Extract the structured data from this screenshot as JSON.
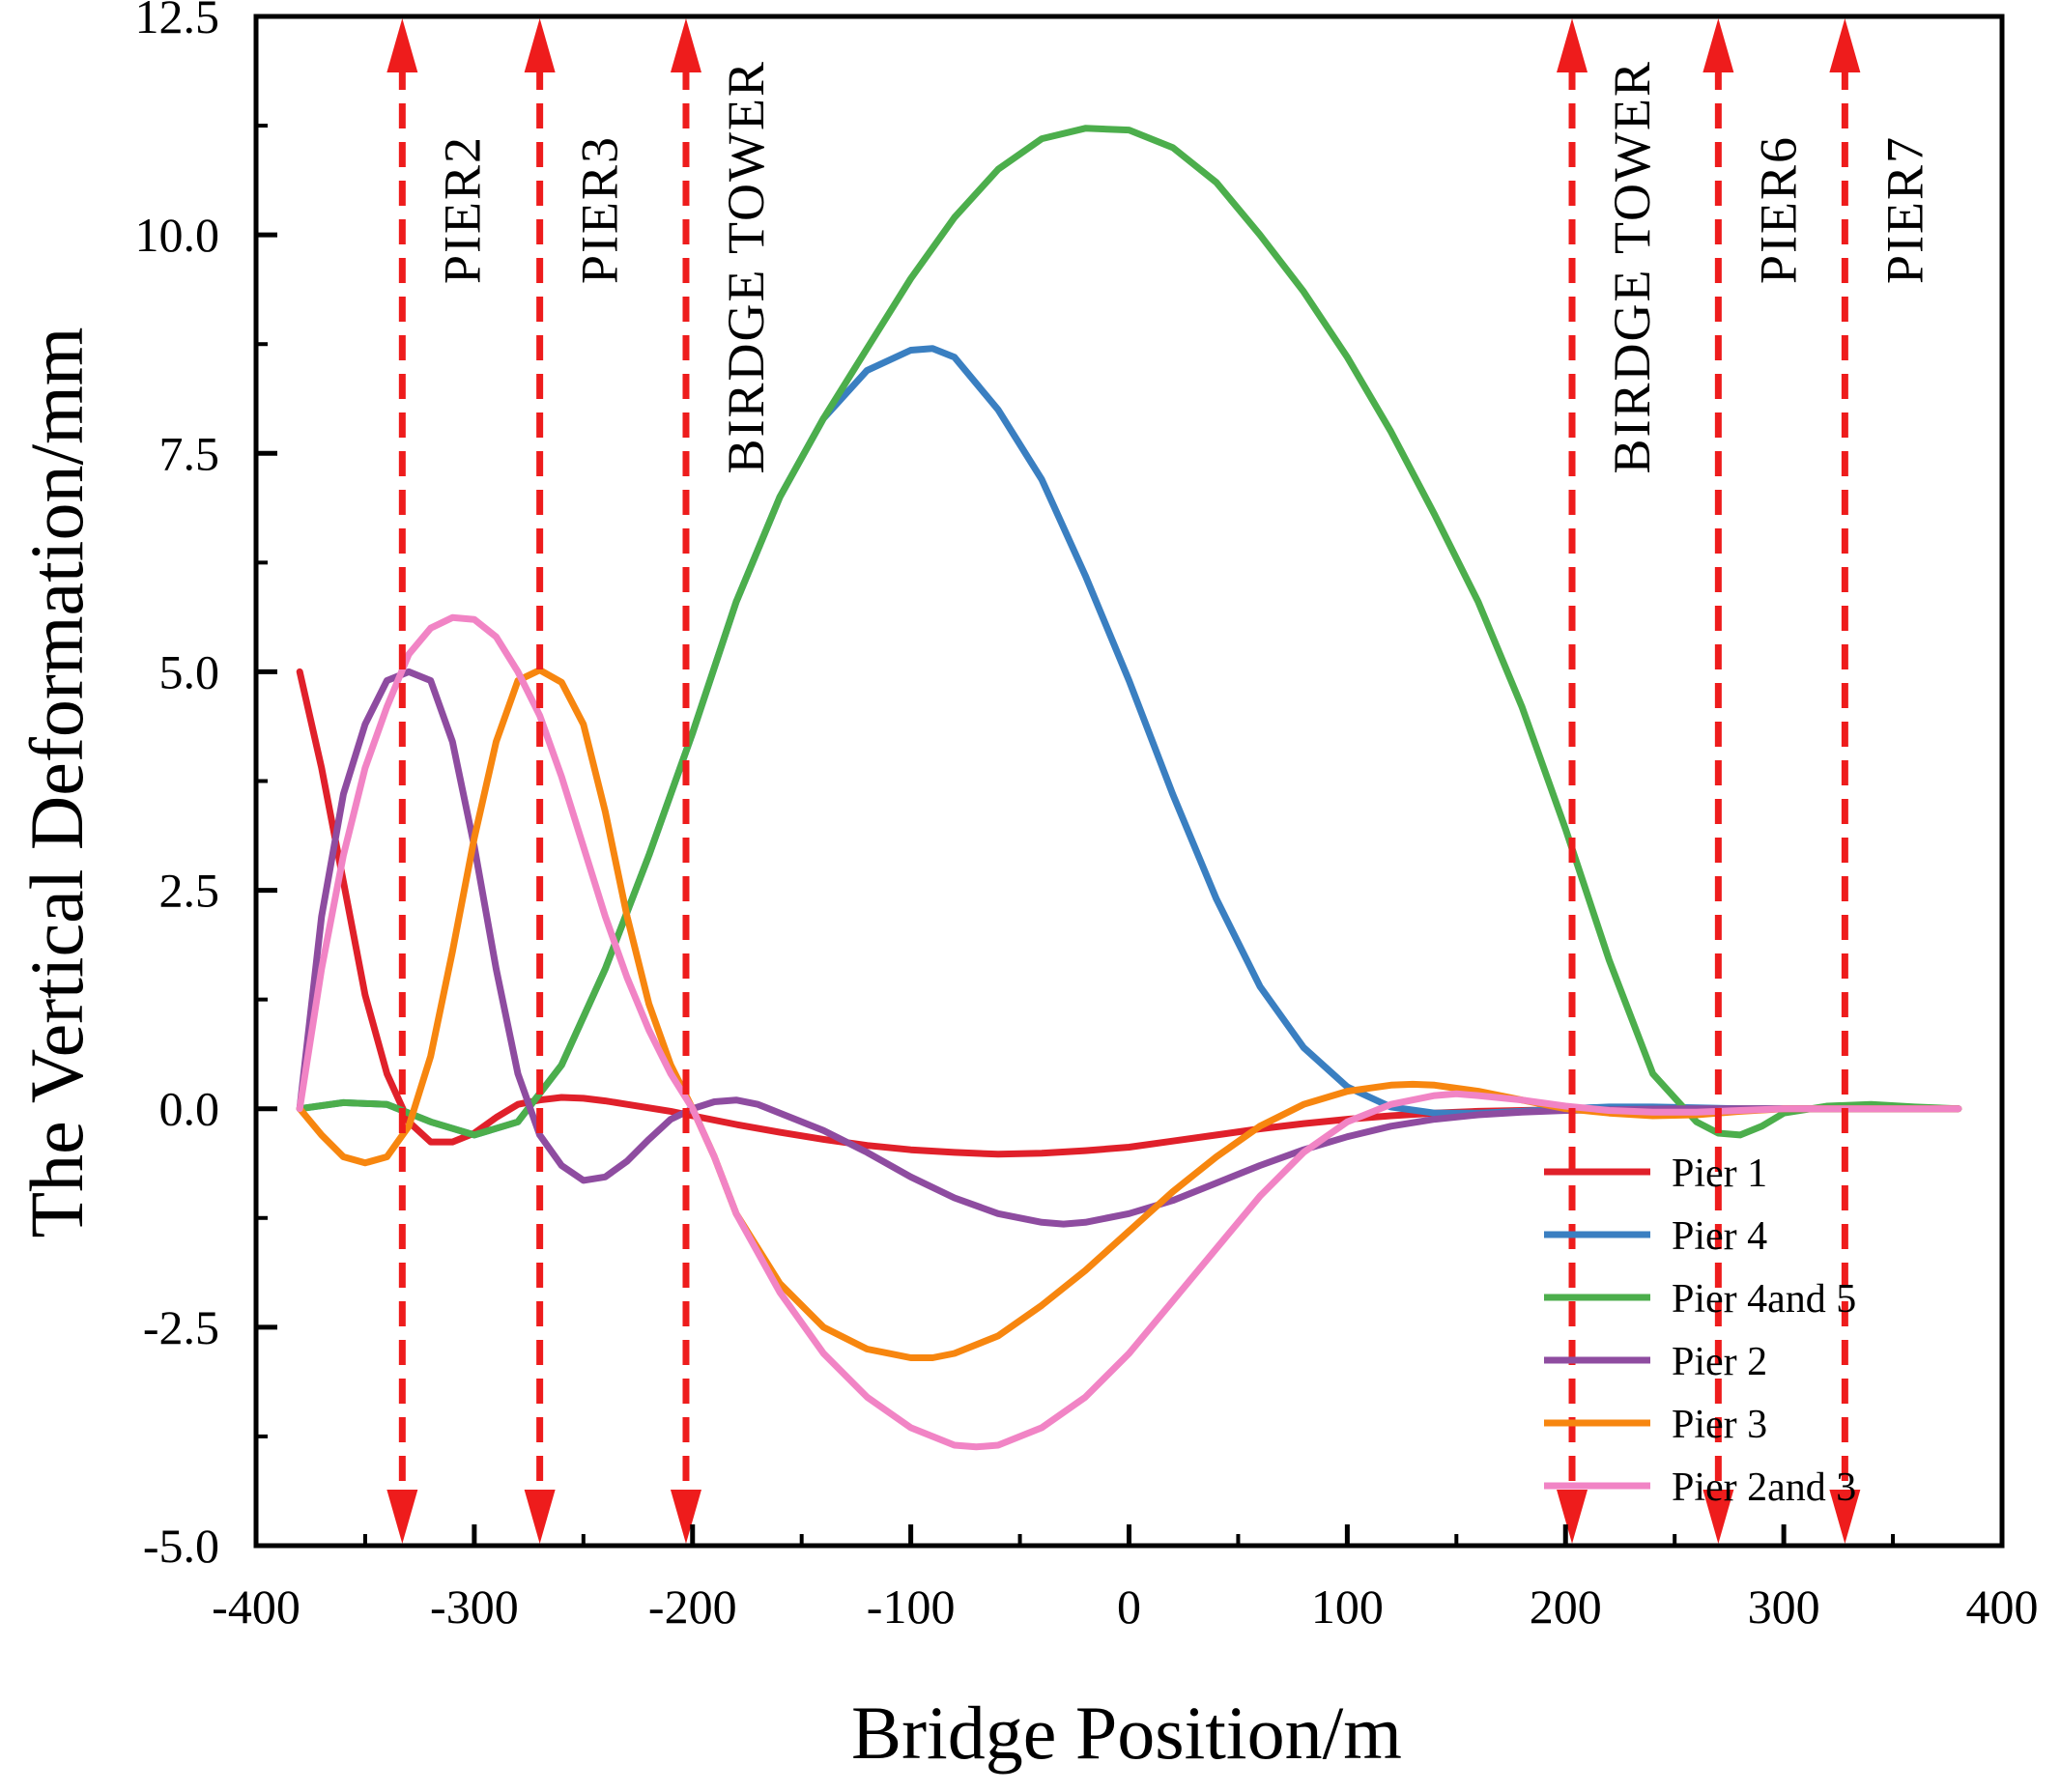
{
  "chart_data": {
    "type": "line",
    "title": "",
    "xlabel": "Bridge Position/m",
    "ylabel": "The Vertical Deformation/mm",
    "xlim": [
      -400,
      400
    ],
    "ylim": [
      -5.0,
      12.5
    ],
    "xticks": [
      -400,
      -300,
      -200,
      -100,
      0,
      100,
      200,
      300,
      400
    ],
    "xtick_labels": [
      "-400",
      "-300",
      "-200",
      "-100",
      "0",
      "100",
      "200",
      "300",
      "400"
    ],
    "yticks": [
      -5.0,
      -2.5,
      0.0,
      2.5,
      5.0,
      7.5,
      10.0,
      12.5
    ],
    "ytick_labels": [
      "-5.0",
      "-2.5",
      "0.0",
      "2.5",
      "5.0",
      "7.5",
      "10.0",
      "12.5"
    ],
    "grid": false,
    "legend_position": "bottom-right",
    "annotations": [
      {
        "label": "PIER2",
        "x": -333
      },
      {
        "label": "PIER3",
        "x": -270
      },
      {
        "label": "BIRDGE TOWER",
        "x": -203
      },
      {
        "label": "BIRDGE TOWER",
        "x": 203
      },
      {
        "label": "PIER6",
        "x": 270
      },
      {
        "label": "PIER7",
        "x": 328
      }
    ],
    "annotation_color": "#ee1c1c",
    "series": [
      {
        "name": "Pier 1",
        "color": "#e0202a",
        "x": [
          -380,
          -370,
          -360,
          -350,
          -340,
          -330,
          -320,
          -310,
          -300,
          -290,
          -280,
          -270,
          -260,
          -250,
          -240,
          -230,
          -220,
          -210,
          -200,
          -180,
          -160,
          -140,
          -120,
          -100,
          -80,
          -60,
          -40,
          -20,
          0,
          20,
          40,
          60,
          80,
          100,
          120,
          140,
          160,
          180,
          200,
          250,
          300,
          350,
          380
        ],
        "y": [
          5.0,
          3.9,
          2.6,
          1.3,
          0.4,
          -0.15,
          -0.38,
          -0.38,
          -0.28,
          -0.1,
          0.05,
          0.1,
          0.13,
          0.12,
          0.09,
          0.05,
          0.01,
          -0.03,
          -0.08,
          -0.18,
          -0.27,
          -0.35,
          -0.42,
          -0.47,
          -0.5,
          -0.52,
          -0.51,
          -0.48,
          -0.44,
          -0.37,
          -0.3,
          -0.23,
          -0.17,
          -0.12,
          -0.08,
          -0.05,
          -0.03,
          -0.02,
          -0.01,
          0.0,
          0.0,
          0.0,
          0.0
        ]
      },
      {
        "name": "Pier 4",
        "color": "#3a7fc1",
        "x": [
          -380,
          -360,
          -340,
          -320,
          -300,
          -280,
          -260,
          -240,
          -220,
          -200,
          -180,
          -160,
          -140,
          -120,
          -100,
          -90,
          -80,
          -60,
          -40,
          -20,
          0,
          20,
          40,
          60,
          80,
          100,
          120,
          140,
          160,
          180,
          200,
          220,
          240,
          260,
          280,
          300,
          320,
          340,
          360,
          380
        ],
        "y": [
          0.0,
          0.07,
          0.05,
          -0.15,
          -0.3,
          -0.15,
          0.5,
          1.6,
          2.9,
          4.3,
          5.8,
          7.0,
          7.9,
          8.45,
          8.68,
          8.7,
          8.6,
          8.0,
          7.2,
          6.1,
          4.9,
          3.6,
          2.4,
          1.4,
          0.7,
          0.25,
          0.02,
          -0.05,
          -0.05,
          -0.03,
          0.0,
          0.02,
          0.02,
          0.01,
          0.0,
          0.0,
          0.0,
          0.0,
          0.0,
          0.0
        ]
      },
      {
        "name": "Pier 4and 5",
        "color": "#4cae4c",
        "x": [
          -380,
          -360,
          -340,
          -320,
          -300,
          -280,
          -260,
          -240,
          -220,
          -200,
          -180,
          -160,
          -140,
          -120,
          -100,
          -80,
          -60,
          -40,
          -20,
          0,
          20,
          40,
          60,
          80,
          100,
          120,
          140,
          160,
          180,
          200,
          220,
          240,
          260,
          270,
          280,
          290,
          300,
          320,
          340,
          360,
          380
        ],
        "y": [
          0.0,
          0.07,
          0.05,
          -0.15,
          -0.3,
          -0.15,
          0.5,
          1.6,
          2.9,
          4.3,
          5.8,
          7.0,
          7.9,
          8.7,
          9.5,
          10.2,
          10.75,
          11.1,
          11.22,
          11.2,
          11.0,
          10.6,
          10.0,
          9.35,
          8.6,
          7.75,
          6.8,
          5.8,
          4.6,
          3.2,
          1.7,
          0.4,
          -0.15,
          -0.28,
          -0.3,
          -0.2,
          -0.05,
          0.03,
          0.05,
          0.02,
          0.0
        ]
      },
      {
        "name": "Pier 2",
        "color": "#8e4ca0",
        "x": [
          -380,
          -370,
          -360,
          -350,
          -340,
          -330,
          -320,
          -310,
          -300,
          -290,
          -280,
          -270,
          -260,
          -250,
          -240,
          -230,
          -220,
          -210,
          -200,
          -190,
          -180,
          -170,
          -160,
          -140,
          -120,
          -100,
          -80,
          -60,
          -40,
          -30,
          -20,
          0,
          20,
          40,
          60,
          80,
          100,
          120,
          140,
          160,
          180,
          200,
          250,
          300,
          350,
          380
        ],
        "y": [
          0.0,
          2.2,
          3.6,
          4.4,
          4.9,
          5.0,
          4.9,
          4.2,
          3.0,
          1.6,
          0.4,
          -0.3,
          -0.65,
          -0.82,
          -0.78,
          -0.6,
          -0.35,
          -0.12,
          0.0,
          0.08,
          0.1,
          0.05,
          -0.05,
          -0.25,
          -0.5,
          -0.78,
          -1.02,
          -1.2,
          -1.3,
          -1.32,
          -1.3,
          -1.2,
          -1.05,
          -0.85,
          -0.65,
          -0.47,
          -0.32,
          -0.2,
          -0.12,
          -0.07,
          -0.04,
          -0.02,
          0.0,
          0.0,
          0.0,
          0.0
        ]
      },
      {
        "name": "Pier 3",
        "color": "#f7860f",
        "x": [
          -380,
          -370,
          -360,
          -350,
          -340,
          -330,
          -320,
          -310,
          -300,
          -290,
          -280,
          -270,
          -260,
          -250,
          -240,
          -230,
          -220,
          -210,
          -200,
          -190,
          -180,
          -160,
          -140,
          -120,
          -100,
          -90,
          -80,
          -60,
          -40,
          -20,
          0,
          20,
          40,
          60,
          80,
          100,
          120,
          130,
          140,
          160,
          180,
          200,
          220,
          240,
          260,
          280,
          300,
          340,
          380
        ],
        "y": [
          0.0,
          -0.3,
          -0.55,
          -0.62,
          -0.55,
          -0.2,
          0.6,
          1.8,
          3.1,
          4.2,
          4.9,
          5.02,
          4.88,
          4.4,
          3.4,
          2.2,
          1.2,
          0.5,
          0.0,
          -0.55,
          -1.2,
          -2.0,
          -2.5,
          -2.75,
          -2.85,
          -2.85,
          -2.8,
          -2.6,
          -2.25,
          -1.85,
          -1.4,
          -0.95,
          -0.55,
          -0.2,
          0.05,
          0.2,
          0.27,
          0.28,
          0.27,
          0.2,
          0.1,
          0.0,
          -0.05,
          -0.08,
          -0.07,
          -0.03,
          0.0,
          0.0,
          0.0
        ]
      },
      {
        "name": "Pier 2and 3",
        "color": "#f184c5",
        "x": [
          -380,
          -370,
          -360,
          -350,
          -340,
          -330,
          -320,
          -310,
          -300,
          -290,
          -280,
          -270,
          -260,
          -250,
          -240,
          -230,
          -220,
          -210,
          -200,
          -190,
          -180,
          -160,
          -140,
          -120,
          -100,
          -80,
          -70,
          -60,
          -40,
          -20,
          0,
          20,
          40,
          60,
          80,
          100,
          120,
          140,
          150,
          160,
          180,
          200,
          220,
          240,
          260,
          280,
          300,
          340,
          380
        ],
        "y": [
          0.0,
          1.6,
          2.9,
          3.9,
          4.6,
          5.2,
          5.5,
          5.62,
          5.6,
          5.4,
          5.0,
          4.5,
          3.8,
          3.0,
          2.2,
          1.5,
          0.9,
          0.4,
          0.0,
          -0.55,
          -1.2,
          -2.1,
          -2.8,
          -3.3,
          -3.65,
          -3.85,
          -3.87,
          -3.85,
          -3.65,
          -3.3,
          -2.8,
          -2.2,
          -1.6,
          -1.0,
          -0.5,
          -0.15,
          0.05,
          0.15,
          0.17,
          0.15,
          0.1,
          0.03,
          -0.02,
          -0.04,
          -0.04,
          -0.02,
          0.0,
          0.0,
          0.0
        ]
      }
    ]
  }
}
